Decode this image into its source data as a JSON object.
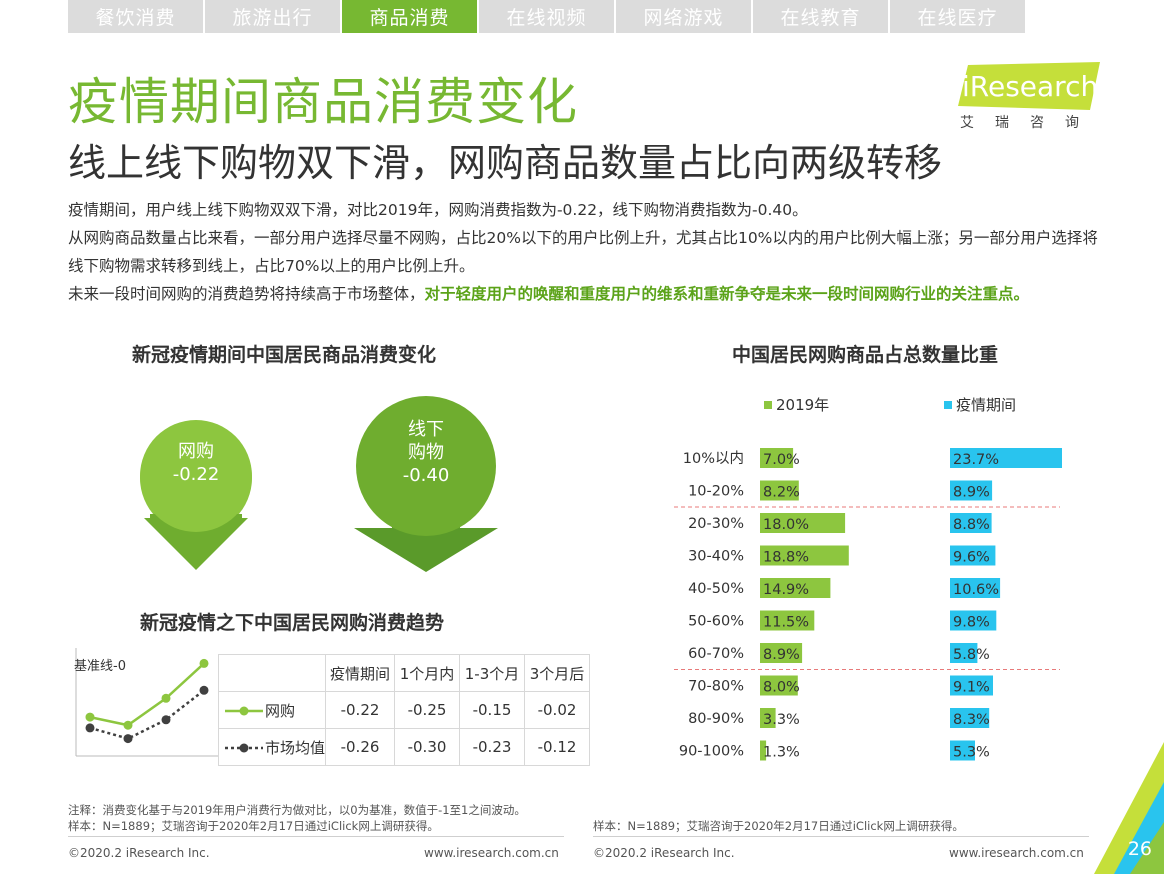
{
  "tabs": [
    {
      "label": "餐饮消费",
      "active": false
    },
    {
      "label": "旅游出行",
      "active": false
    },
    {
      "label": "商品消费",
      "active": true
    },
    {
      "label": "在线视频",
      "active": false
    },
    {
      "label": "网络游戏",
      "active": false
    },
    {
      "label": "在线教育",
      "active": false
    },
    {
      "label": "在线医疗",
      "active": false
    }
  ],
  "logo": {
    "brand": "iResearch",
    "sub": "艾瑞咨询"
  },
  "title": "疫情期间商品消费变化",
  "subtitle": "线上线下购物双下滑，网购商品数量占比向两级转移",
  "paragraphs": {
    "p1": "疫情期间，用户线上线下购物双双下滑，对比2019年，网购消费指数为-0.22，线下购物消费指数为-0.40。",
    "p2": "从网购商品数量占比来看，一部分用户选择尽量不网购，占比20%以下的用户比例上升，尤其占比10%以内的用户比例大幅上涨；另一部分用户选择将线下购物需求转移到线上，占比70%以上的用户比例上升。",
    "p3_plain": "未来一段时间网购的消费趋势将持续高于市场整体，",
    "p3_highlight": "对于轻度用户的唤醒和重度用户的维系和重新争夺是未来一段时间网购行业的关注重点。"
  },
  "consumption_change": {
    "title": "新冠疫情期间中国居民商品消费变化",
    "online": {
      "line1": "网购",
      "value": "-0.22"
    },
    "offline": {
      "line1": "线下",
      "line2": "购物",
      "value": "-0.40"
    }
  },
  "trend": {
    "title": "新冠疫情之下中国居民网购消费趋势",
    "baseline_label": "基准线-0",
    "headers": [
      "疫情期间",
      "1个月内",
      "1-3个月",
      "3个月后"
    ],
    "rows": [
      {
        "name": "网购",
        "values": [
          "-0.22",
          "-0.25",
          "-0.15",
          "-0.02"
        ]
      },
      {
        "name": "市场均值",
        "values": [
          "-0.26",
          "-0.30",
          "-0.23",
          "-0.12"
        ]
      }
    ]
  },
  "chart_data": [
    {
      "type": "line",
      "title": "新冠疫情之下中国居民网购消费趋势",
      "categories": [
        "疫情期间",
        "1个月内",
        "1-3个月",
        "3个月后"
      ],
      "series": [
        {
          "name": "网购",
          "values": [
            -0.22,
            -0.25,
            -0.15,
            -0.02
          ],
          "color": "#8dc63f"
        },
        {
          "name": "市场均值",
          "values": [
            -0.26,
            -0.3,
            -0.23,
            -0.12
          ],
          "color": "#404040"
        }
      ],
      "baseline": 0
    },
    {
      "type": "bar",
      "title": "中国居民网购商品占总数量比重",
      "categories": [
        "10%以内",
        "10-20%",
        "20-30%",
        "30-40%",
        "40-50%",
        "50-60%",
        "60-70%",
        "70-80%",
        "80-90%",
        "90-100%"
      ],
      "series": [
        {
          "name": "2019年",
          "values": [
            7.0,
            8.2,
            18.0,
            18.8,
            14.9,
            11.5,
            8.9,
            8.0,
            3.3,
            1.3
          ],
          "color": "#8dc63f"
        },
        {
          "name": "疫情期间",
          "values": [
            23.7,
            8.9,
            8.8,
            9.6,
            10.6,
            9.8,
            5.8,
            9.1,
            8.3,
            5.3
          ],
          "color": "#29c4ee"
        }
      ],
      "value_labels": {
        "2019年": [
          "7.0%",
          "8.2%",
          "18.0%",
          "18.8%",
          "14.9%",
          "11.5%",
          "8.9%",
          "8.0%",
          "3.3%",
          "1.3%"
        ],
        "疫情期间": [
          "23.7%",
          "8.9%",
          "8.8%",
          "9.6%",
          "10.6%",
          "9.8%",
          "5.8%",
          "9.1%",
          "8.3%",
          "5.3%"
        ]
      },
      "legend_position": "top",
      "separators_after": [
        "10-20%",
        "60-70%"
      ]
    }
  ],
  "notes": {
    "left_note1": "注释：消费变化基于与2019年用户消费行为做对比，以0为基准，数值于-1至1之间波动。",
    "left_note2": "样本：N=1889；艾瑞咨询于2020年2月17日通过iClick网上调研获得。",
    "right_note": "样本：N=1889；艾瑞咨询于2020年2月17日通过iClick网上调研获得。"
  },
  "footer": {
    "copyright_left": "©2020.2 iResearch Inc.",
    "url_left": "www.iresearch.com.cn",
    "copyright_right": "©2020.2 iResearch Inc.",
    "url_right": "www.iresearch.com.cn",
    "page": "26"
  }
}
